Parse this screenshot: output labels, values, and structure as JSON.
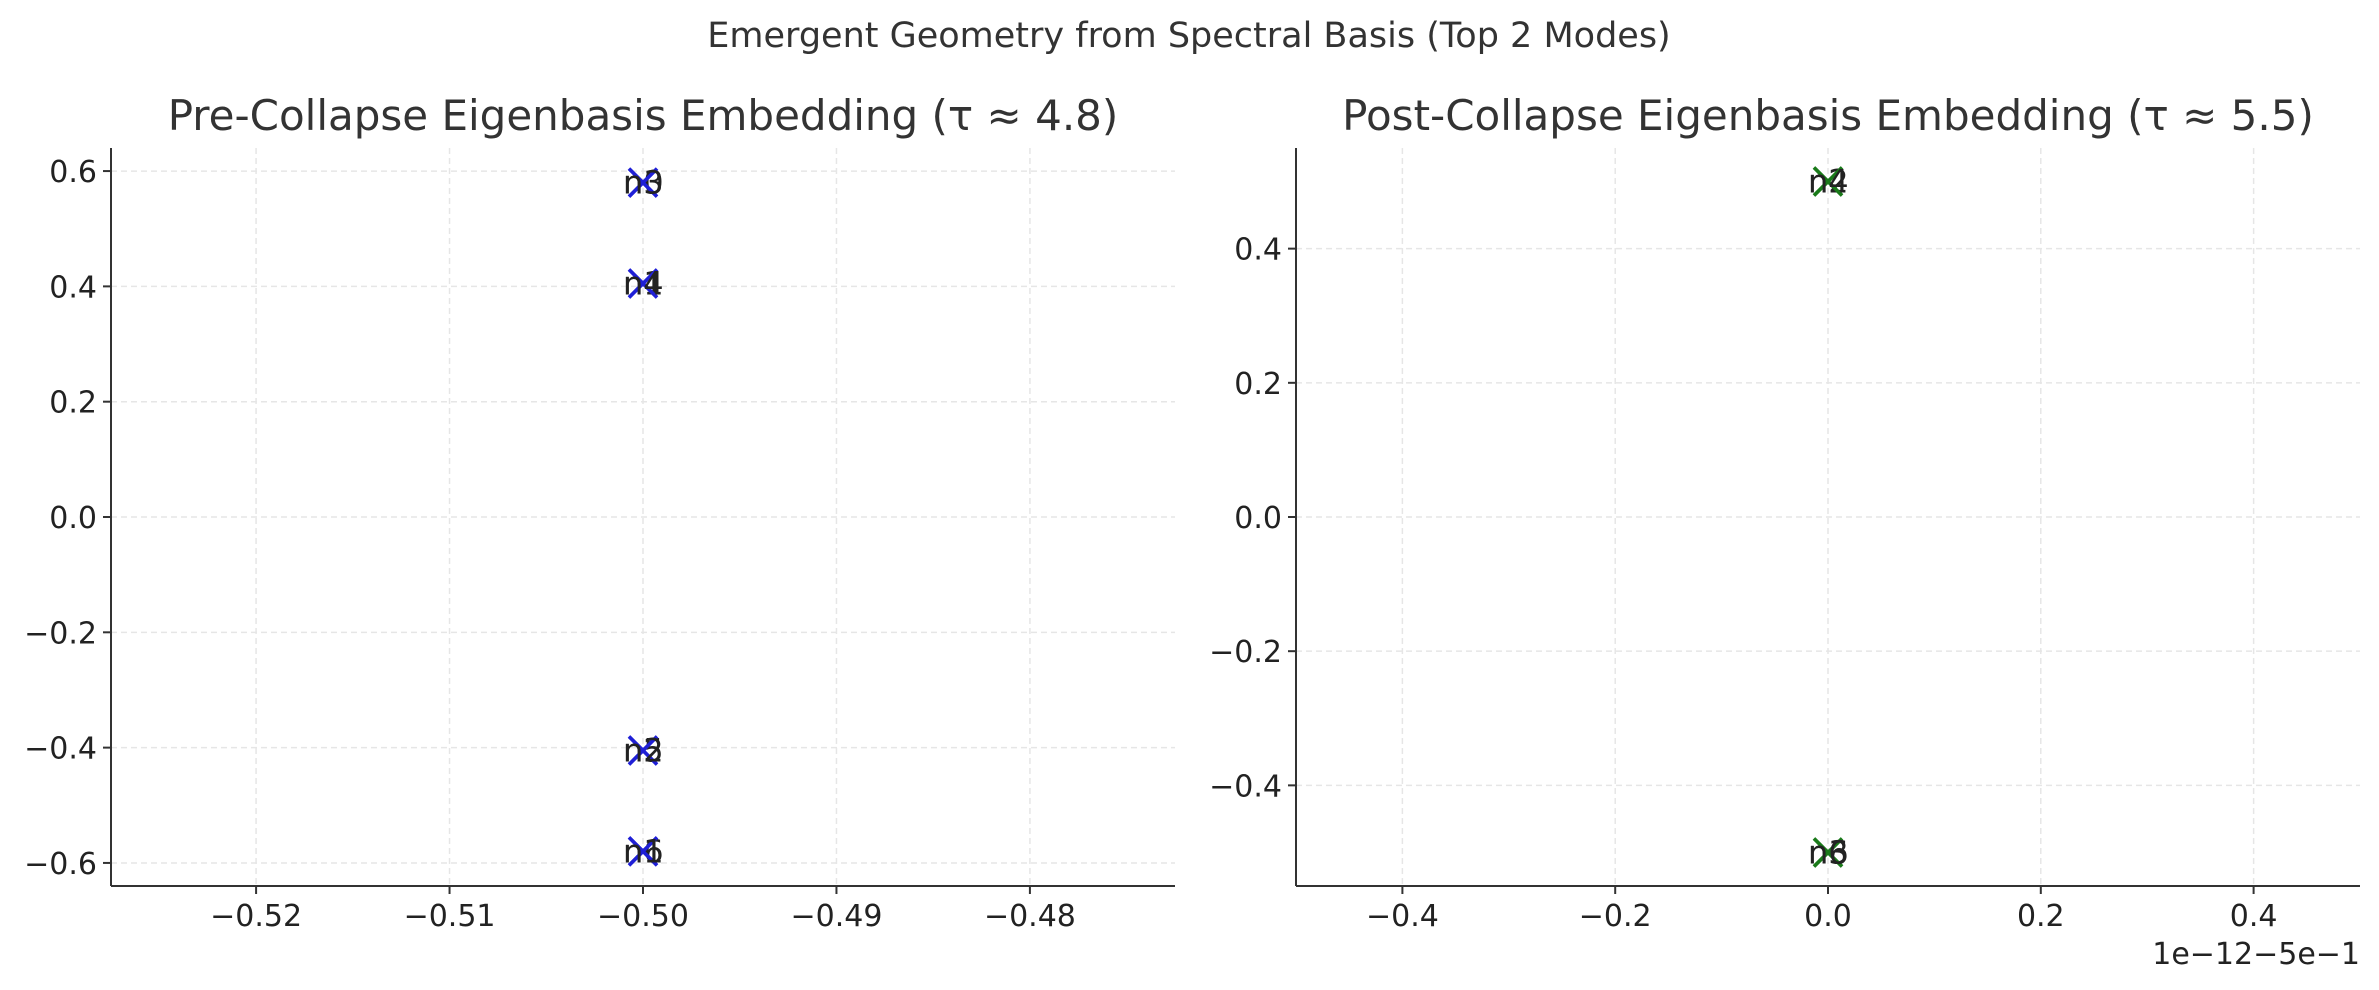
{
  "figure": {
    "suptitle": "Emergent Geometry from Spectral Basis (Top 2 Modes)"
  },
  "chart_data": [
    {
      "type": "scatter",
      "title": "Pre-Collapse Eigenbasis Embedding (τ ≈ 4.8)",
      "xlabel": "",
      "ylabel": "",
      "xlim": [
        -0.5275,
        -0.4725
      ],
      "ylim": [
        -0.64,
        0.64
      ],
      "xticks": [
        -0.52,
        -0.51,
        -0.5,
        -0.49,
        -0.48
      ],
      "xtick_labels": [
        "−0.52",
        "−0.51",
        "−0.50",
        "−0.49",
        "−0.48"
      ],
      "yticks": [
        -0.6,
        -0.4,
        -0.2,
        0.0,
        0.2,
        0.4,
        0.6
      ],
      "ytick_labels": [
        "−0.6",
        "−0.4",
        "−0.2",
        "0.0",
        "0.2",
        "0.4",
        "0.6"
      ],
      "offset_text": "",
      "grid": true,
      "marker": "x",
      "color": "#1f1fd6",
      "points": [
        {
          "label": "n0",
          "x": -0.5,
          "y": 0.58
        },
        {
          "label": "n3",
          "x": -0.5,
          "y": 0.58
        },
        {
          "label": "n1",
          "x": -0.5,
          "y": 0.405
        },
        {
          "label": "n4",
          "x": -0.5,
          "y": 0.405
        },
        {
          "label": "n5",
          "x": -0.5,
          "y": -0.405
        },
        {
          "label": "n2",
          "x": -0.5,
          "y": -0.405
        },
        {
          "label": "n6",
          "x": -0.5,
          "y": -0.58
        },
        {
          "label": "n1",
          "x": -0.5,
          "y": -0.58
        }
      ]
    },
    {
      "type": "scatter",
      "title": "Post-Collapse Eigenbasis Embedding (τ ≈ 5.5)",
      "xlabel": "",
      "ylabel": "",
      "xlim": [
        -0.5,
        0.5
      ],
      "ylim": [
        -0.55,
        0.55
      ],
      "xticks": [
        -0.4,
        -0.2,
        0.0,
        0.2,
        0.4
      ],
      "xtick_labels": [
        "−0.4",
        "−0.2",
        "0.0",
        "0.2",
        "0.4"
      ],
      "yticks": [
        -0.4,
        -0.2,
        0.0,
        0.2,
        0.4
      ],
      "ytick_labels": [
        "−0.4",
        "−0.2",
        "0.0",
        "0.2",
        "0.4"
      ],
      "offset_text": "1e−12−5e−1",
      "grid": true,
      "marker": "x",
      "color": "#1a7a1a",
      "points": [
        {
          "label": "n2",
          "x": 0.0,
          "y": 0.5
        },
        {
          "label": "n4",
          "x": 0.0,
          "y": 0.5
        },
        {
          "label": "n3",
          "x": 0.0,
          "y": -0.5
        },
        {
          "label": "n6",
          "x": 0.0,
          "y": -0.5
        }
      ]
    }
  ]
}
